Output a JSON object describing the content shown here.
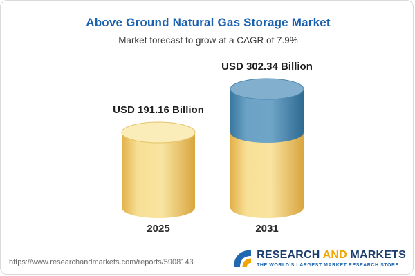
{
  "header": {
    "title": "Above Ground Natural Gas Storage Market",
    "subtitle": "Market forecast to grow at a CAGR of 7.9%"
  },
  "chart_data": {
    "type": "bar",
    "subtype": "3d-cylinder",
    "title": "Above Ground Natural Gas Storage Market",
    "subtitle": "Market forecast to grow at a CAGR of 7.9%",
    "categories": [
      "2025",
      "2031"
    ],
    "values": [
      191.16,
      302.34
    ],
    "value_labels": [
      "USD 191.16 Billion",
      "USD 302.34 Billion"
    ],
    "unit": "USD Billion",
    "cagr": "7.9%",
    "legend": "none",
    "grid": "off",
    "colors": {
      "bar_base_yellow": "#F2D680",
      "bar_growth_blue": "#5D98BE",
      "title_blue": "#1A61B0"
    }
  },
  "footer": {
    "url": "https://www.researchandmarkets.com/reports/5908143",
    "logo": {
      "word1": "RESEARCH",
      "word2": "AND",
      "word3": "MARKETS",
      "tagline": "THE WORLD'S LARGEST MARKET RESEARCH STORE"
    }
  }
}
